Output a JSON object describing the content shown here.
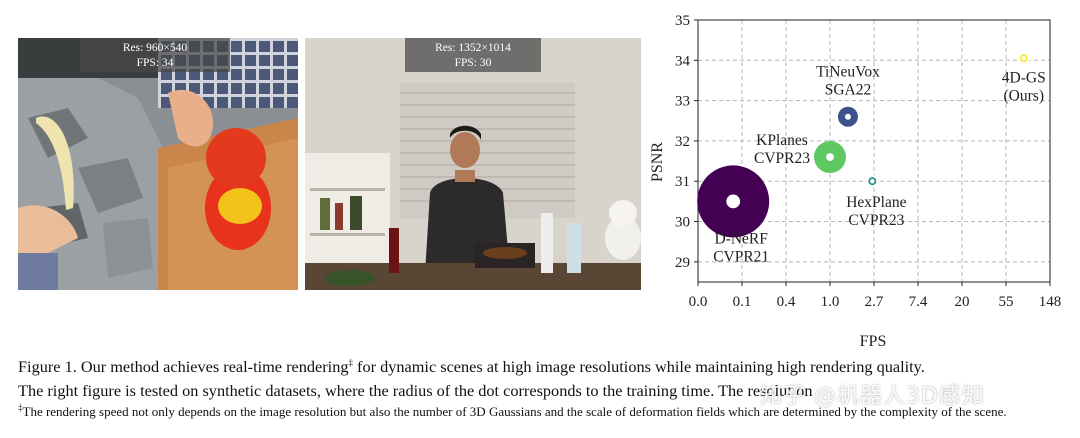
{
  "photos": [
    {
      "res": "Res: 960×540",
      "fps": "FPS: 34"
    },
    {
      "res": "Res: 1352×1014",
      "fps": "FPS: 30"
    }
  ],
  "chart_data": {
    "type": "scatter",
    "xlabel": "FPS",
    "ylabel": "PSNR",
    "x_tick_labels": [
      "0.0",
      "0.1",
      "0.4",
      "1.0",
      "2.7",
      "7.4",
      "20",
      "55",
      "148"
    ],
    "ylim": [
      28.5,
      35
    ],
    "y_ticks": [
      29,
      30,
      31,
      32,
      33,
      34,
      35
    ],
    "grid": true,
    "points": [
      {
        "label": "D-NeRF",
        "label2": "CVPR21",
        "fps": 0.08,
        "psnr": 30.5,
        "color": "#440154",
        "radius_rank": 5
      },
      {
        "label": "KPlanes",
        "label2": "CVPR23",
        "fps": 1.0,
        "psnr": 31.6,
        "color": "#5ec962",
        "radius_rank": 3
      },
      {
        "label": "TiNeuVox",
        "label2": "SGA22",
        "fps": 1.5,
        "psnr": 32.6,
        "color": "#3b528b",
        "radius_rank": 2
      },
      {
        "label": "HexPlane",
        "label2": "CVPR23",
        "fps": 2.6,
        "psnr": 31.0,
        "color": "#21918c",
        "radius_rank": 1
      },
      {
        "label": "4D-GS",
        "label2": "(Ours)",
        "fps": 82,
        "psnr": 34.05,
        "color": "#fde725",
        "radius_rank": 1
      }
    ]
  },
  "caption": {
    "line1_pre": "Figure 1. Our method achieves real-time rendering",
    "mark": "‡",
    "line1_post": " for dynamic scenes at high image resolutions while maintaining high rendering quality.",
    "line2": "The right figure is tested on synthetic datasets, where the radius of the dot corresponds to the training time. The resolution",
    "footnote_mark": "‡",
    "footnote": "The rendering speed not only depends on the image resolution but also the number of 3D Gaussians and the scale of deformation fields which are determined by the complexity of the scene."
  },
  "watermark": "知乎 @机器人3D感知"
}
